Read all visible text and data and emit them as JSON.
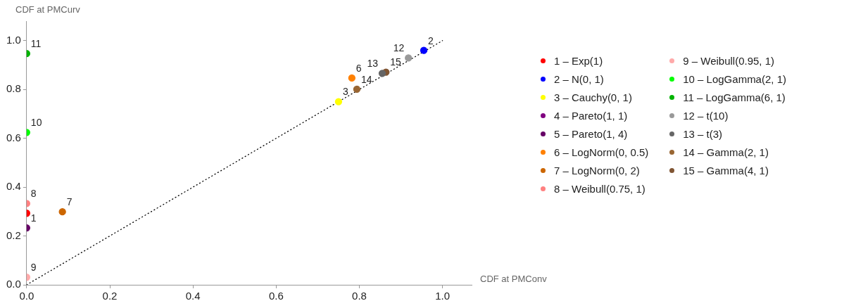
{
  "chart_data": {
    "type": "scatter",
    "xlabel": "CDF at PMConv",
    "ylabel": "CDF at PMCurv",
    "xlim": [
      0,
      1.07
    ],
    "ylim": [
      0,
      1.08
    ],
    "xticks": [
      {
        "value": 0,
        "label": "0.0"
      },
      {
        "value": 0.2,
        "label": "0.2"
      },
      {
        "value": 0.4,
        "label": "0.4"
      },
      {
        "value": 0.6,
        "label": "0.6"
      },
      {
        "value": 0.8,
        "label": "0.8"
      },
      {
        "value": 1,
        "label": "1.0"
      }
    ],
    "yticks": [
      {
        "value": 0,
        "label": "0.0"
      },
      {
        "value": 0.2,
        "label": "0.2"
      },
      {
        "value": 0.4,
        "label": "0.4"
      },
      {
        "value": 0.6,
        "label": "0.6"
      },
      {
        "value": 0.8,
        "label": "0.8"
      },
      {
        "value": 1,
        "label": "1.0"
      }
    ],
    "grid": false,
    "legend": "right",
    "marker": "circle",
    "series": [
      {
        "name": "1 – Exp(1)",
        "color": "#ff0000",
        "x": [
          0
        ],
        "values": [
          0.293
        ]
      },
      {
        "name": "2 – N(0, 1)",
        "color": "#0000ff",
        "x": [
          0.955
        ],
        "values": [
          0.96
        ]
      },
      {
        "name": "3 – Cauchy(0, 1)",
        "color": "#ffff00",
        "x": [
          0.75
        ],
        "values": [
          0.75
        ]
      },
      {
        "name": "4 – Pareto(1, 1)",
        "color": "#800080"
      },
      {
        "name": "5 – Pareto(1, 4)",
        "color": "#660066",
        "x": [
          0
        ],
        "values": [
          0.233
        ]
      },
      {
        "name": "6 – LogNorm(0, 0.5)",
        "color": "#ff8000",
        "x": [
          0.782
        ],
        "values": [
          0.847
        ]
      },
      {
        "name": "7 – LogNorm(0, 2)",
        "color": "#cc6600",
        "x": [
          0.086
        ],
        "values": [
          0.299
        ]
      },
      {
        "name": "8 – Weibull(0.75, 1)",
        "color": "#ff8080",
        "x": [
          0
        ],
        "values": [
          0.333
        ]
      },
      {
        "name": "9 – Weibull(0.95, 1)",
        "color": "#ffaaaa",
        "x": [
          0
        ],
        "values": [
          0.031
        ]
      },
      {
        "name": "10 – LogGamma(2, 1)",
        "color": "#00ff00",
        "x": [
          0
        ],
        "values": [
          0.624
        ]
      },
      {
        "name": "11 – LogGamma(6, 1)",
        "color": "#00b300",
        "x": [
          0
        ],
        "values": [
          0.947
        ]
      },
      {
        "name": "12 – t(10)",
        "color": "#999999",
        "x": [
          0.918
        ],
        "values": [
          0.929
        ]
      },
      {
        "name": "13 – t(3)",
        "color": "#666666",
        "x": [
          0.855
        ],
        "values": [
          0.866
        ]
      },
      {
        "name": "14 – Gamma(2, 1)",
        "color": "#996633",
        "x": [
          0.794
        ],
        "values": [
          0.801
        ]
      },
      {
        "name": "15 – Gamma(4, 1)",
        "color": "#805533",
        "x": [
          0.864
        ],
        "values": [
          0.871
        ]
      },
      {
        "type": "line",
        "color": "#000000",
        "line_style": "dotted",
        "marker": "none",
        "x": [
          0,
          1
        ],
        "values": [
          0,
          1
        ]
      }
    ],
    "annotations": [
      {
        "text": "1",
        "x": 0,
        "y": 0.233
      },
      {
        "text": "2",
        "x": 0.955,
        "y": 0.96
      },
      {
        "text": "3",
        "x": 0.75,
        "y": 0.75
      },
      {
        "text": "6",
        "x": 0.782,
        "y": 0.847
      },
      {
        "text": "7",
        "x": 0.086,
        "y": 0.299
      },
      {
        "text": "8",
        "x": 0,
        "y": 0.333
      },
      {
        "text": "9",
        "x": 0,
        "y": 0.031
      },
      {
        "text": "10",
        "x": 0,
        "y": 0.624
      },
      {
        "text": "11",
        "x": 0,
        "y": 0.947
      },
      {
        "text": "12",
        "x": 0.918,
        "y": 0.929
      },
      {
        "text": "15",
        "x": 0.864,
        "y": 0.871
      },
      {
        "text": "13",
        "x": 0.855,
        "y": 0.866
      },
      {
        "text": "14",
        "x": 0.794,
        "y": 0.801
      }
    ]
  }
}
